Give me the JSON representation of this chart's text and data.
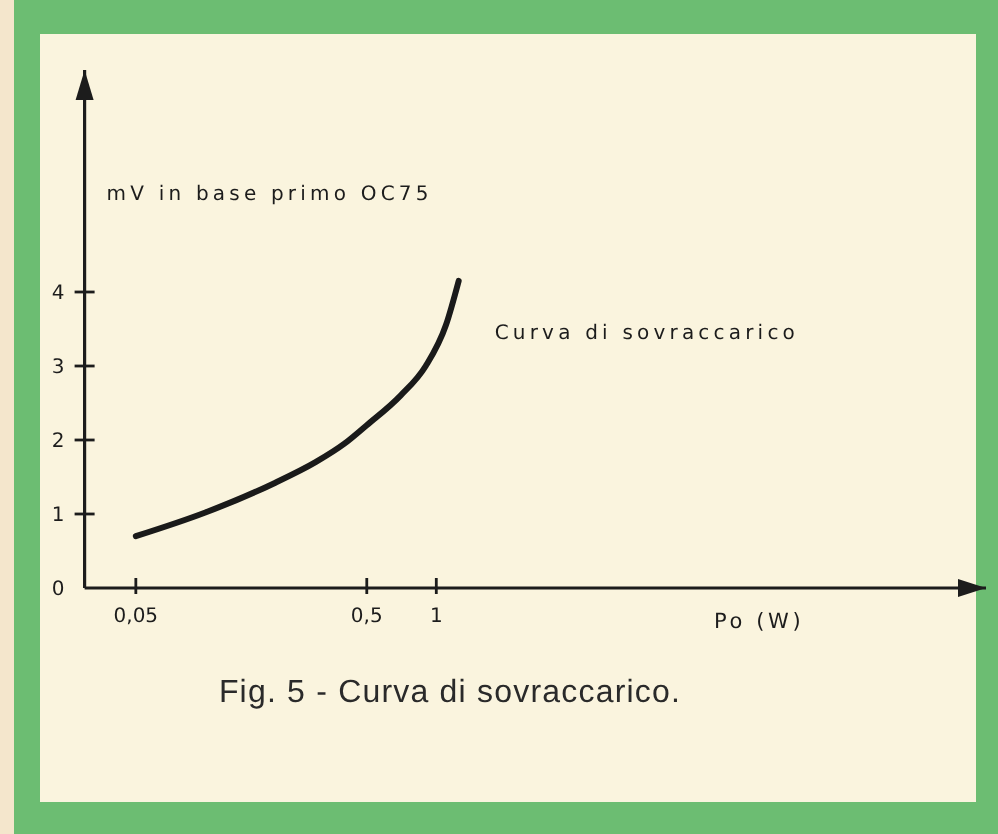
{
  "chart_data": {
    "type": "line",
    "ylabel": "mV in base primo OC75",
    "xlabel": "Po (W)",
    "annotations": [
      "Fig. 5 - Curva di sovraccarico."
    ],
    "log": "x",
    "xlim": [
      0.03,
      240
    ],
    "ylim": [
      0,
      7
    ],
    "xticks": [
      {
        "value": 0.05,
        "label": "0,05"
      },
      {
        "value": 0.5,
        "label": "0,5"
      },
      1
    ],
    "yticks": [
      0,
      1,
      2,
      3,
      4
    ],
    "x": [
      0.05,
      0.1,
      0.2,
      0.3,
      0.4,
      0.5,
      0.7,
      0.9,
      1.1,
      1.25
    ],
    "series": [
      {
        "name": "Curva di sovraccarico",
        "color": "#1a1a1a",
        "values": [
          0.7,
          1.02,
          1.42,
          1.7,
          1.95,
          2.2,
          2.6,
          3.0,
          3.55,
          4.15
        ]
      }
    ]
  }
}
